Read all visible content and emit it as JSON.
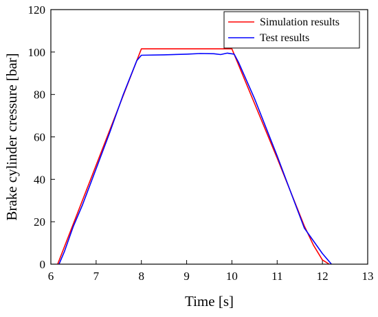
{
  "chart_data": {
    "type": "line",
    "xlabel": "Time [s]",
    "ylabel": "Brake cylinder cressure [bar]",
    "xlim": [
      6,
      13
    ],
    "ylim": [
      0,
      120
    ],
    "xticks": [
      6,
      7,
      8,
      9,
      10,
      11,
      12,
      13
    ],
    "yticks": [
      0,
      20,
      40,
      60,
      80,
      100,
      120
    ],
    "grid": false,
    "legend_position": "top-right",
    "series": [
      {
        "name": "Simulation results",
        "color": "#ff0000",
        "x": [
          6.15,
          8.0,
          10.0,
          11.0,
          11.6,
          11.8,
          12.0,
          12.15
        ],
        "y": [
          0,
          101.5,
          101.5,
          50,
          18,
          9,
          2,
          0
        ]
      },
      {
        "name": "Test results",
        "color": "#0000ff",
        "x": [
          6.18,
          6.3,
          6.45,
          6.5,
          6.7,
          7.0,
          7.3,
          7.6,
          7.9,
          8.0,
          8.5,
          9.0,
          9.3,
          9.6,
          9.75,
          9.9,
          10.05,
          10.15,
          10.5,
          11.0,
          11.3,
          11.6,
          11.8,
          12.0,
          12.2
        ],
        "y": [
          0,
          6,
          15,
          18,
          28,
          45,
          62,
          80,
          96,
          98.5,
          98.7,
          99,
          99.3,
          99.2,
          98.8,
          99.5,
          99,
          95,
          78,
          51,
          34,
          17,
          11,
          5,
          0
        ]
      }
    ]
  }
}
